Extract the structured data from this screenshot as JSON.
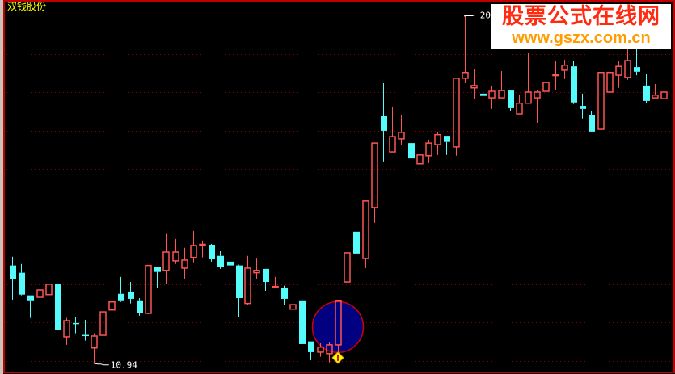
{
  "header": {
    "title": "双钱股份"
  },
  "watermark": {
    "line1": "股票公式在线网",
    "line2": "www.gszx.com.cn"
  },
  "colors": {
    "up": "#ff5454",
    "down": "#54fcfc",
    "grid": "#8c0000",
    "background": "#000000",
    "title": "#ffff00",
    "highlight_circle": "#000080",
    "marker": "#ffff00"
  },
  "chart_data": {
    "type": "candlestick",
    "title": "",
    "ylim": [
      10.66,
      20.41
    ],
    "grid_y": [
      11,
      12,
      13,
      14,
      15,
      16,
      17,
      18,
      19
    ],
    "grid": true,
    "candle_fields": [
      "open",
      "high",
      "low",
      "close"
    ],
    "candles": [
      [
        13.49,
        13.72,
        12.6,
        13.13
      ],
      [
        13.3,
        13.53,
        12.71,
        12.73
      ],
      [
        12.71,
        12.71,
        12.12,
        12.56
      ],
      [
        12.66,
        12.9,
        12.26,
        12.85
      ],
      [
        12.73,
        13.4,
        12.6,
        13.0
      ],
      [
        13.0,
        13.0,
        11.8,
        11.8
      ],
      [
        11.63,
        12.12,
        11.42,
        12.05
      ],
      [
        11.99,
        12.14,
        11.72,
        11.98
      ],
      [
        11.68,
        12.07,
        11.53,
        11.66
      ],
      [
        11.34,
        11.72,
        10.94,
        11.65
      ],
      [
        11.67,
        12.39,
        11.67,
        12.28
      ],
      [
        12.33,
        12.77,
        12.1,
        12.54
      ],
      [
        12.75,
        13.19,
        12.54,
        12.56
      ],
      [
        12.81,
        13.06,
        12.5,
        12.62
      ],
      [
        12.56,
        12.64,
        12.18,
        12.26
      ],
      [
        12.24,
        13.49,
        12.22,
        13.49
      ],
      [
        13.46,
        13.46,
        12.9,
        13.32
      ],
      [
        13.36,
        14.31,
        13.0,
        13.84
      ],
      [
        13.61,
        14.18,
        13.53,
        13.84
      ],
      [
        13.42,
        13.95,
        13.13,
        13.63
      ],
      [
        13.7,
        14.39,
        13.57,
        14.01
      ],
      [
        14.02,
        14.14,
        13.7,
        14.04
      ],
      [
        14.03,
        14.05,
        13.59,
        13.65
      ],
      [
        13.74,
        13.86,
        13.4,
        13.46
      ],
      [
        13.59,
        13.84,
        13.42,
        13.49
      ],
      [
        13.49,
        13.51,
        12.14,
        12.64
      ],
      [
        12.5,
        13.74,
        12.47,
        13.42
      ],
      [
        13.3,
        13.67,
        13.13,
        13.36
      ],
      [
        13.4,
        13.4,
        12.83,
        13.06
      ],
      [
        12.92,
        13.19,
        12.9,
        12.94
      ],
      [
        12.9,
        12.96,
        12.47,
        12.62
      ],
      [
        12.35,
        12.85,
        12.35,
        12.47
      ],
      [
        12.56,
        12.66,
        11.36,
        11.44
      ],
      [
        11.51,
        11.51,
        11.02,
        11.23
      ],
      [
        11.23,
        11.46,
        11.11,
        11.36
      ],
      [
        11.19,
        11.49,
        10.96,
        11.42
      ],
      [
        11.42,
        12.56,
        11.21,
        12.56
      ],
      [
        13.06,
        13.82,
        13.06,
        13.82
      ],
      [
        14.37,
        14.77,
        13.55,
        13.8
      ],
      [
        13.67,
        15.17,
        13.42,
        15.17
      ],
      [
        15.0,
        16.68,
        14.6,
        16.68
      ],
      [
        17.38,
        18.24,
        16.2,
        17.0
      ],
      [
        16.45,
        17.61,
        16.45,
        16.85
      ],
      [
        16.79,
        17.42,
        16.62,
        16.96
      ],
      [
        16.68,
        17.0,
        16.05,
        16.28
      ],
      [
        16.14,
        16.47,
        16.05,
        16.37
      ],
      [
        16.35,
        16.77,
        16.16,
        16.68
      ],
      [
        16.64,
        16.98,
        16.37,
        16.9
      ],
      [
        16.87,
        16.87,
        16.37,
        16.71
      ],
      [
        16.58,
        18.37,
        16.35,
        18.37
      ],
      [
        18.37,
        20.0,
        18.24,
        18.52
      ],
      [
        18.12,
        18.62,
        17.84,
        18.18
      ],
      [
        17.97,
        18.37,
        17.84,
        17.91
      ],
      [
        17.86,
        18.18,
        17.57,
        18.03
      ],
      [
        17.86,
        18.56,
        17.86,
        18.05
      ],
      [
        18.05,
        18.05,
        17.51,
        17.59
      ],
      [
        17.44,
        17.95,
        17.44,
        17.72
      ],
      [
        17.72,
        19.04,
        17.72,
        18.01
      ],
      [
        17.86,
        18.07,
        17.21,
        18.01
      ],
      [
        18.03,
        18.85,
        17.88,
        18.26
      ],
      [
        18.44,
        18.81,
        18.07,
        18.46
      ],
      [
        18.58,
        18.85,
        18.35,
        18.71
      ],
      [
        18.68,
        18.81,
        17.7,
        17.74
      ],
      [
        17.65,
        17.97,
        17.32,
        17.57
      ],
      [
        17.42,
        17.51,
        16.96,
        16.98
      ],
      [
        17.04,
        18.62,
        17.04,
        18.52
      ],
      [
        18.01,
        18.81,
        18.01,
        18.52
      ],
      [
        18.45,
        18.83,
        18.12,
        18.68
      ],
      [
        18.39,
        19.15,
        18.33,
        18.83
      ],
      [
        18.66,
        19.25,
        18.45,
        18.54
      ],
      [
        18.18,
        18.49,
        17.72,
        17.78
      ],
      [
        17.86,
        18.22,
        17.86,
        17.93
      ],
      [
        17.84,
        18.14,
        17.57,
        18.01
      ]
    ],
    "annotations": {
      "high_label": "20",
      "high_index": 50,
      "low_label": "10.94",
      "low_index": 9,
      "highlight_index": 36,
      "marker_icon": "warning-diamond"
    }
  }
}
